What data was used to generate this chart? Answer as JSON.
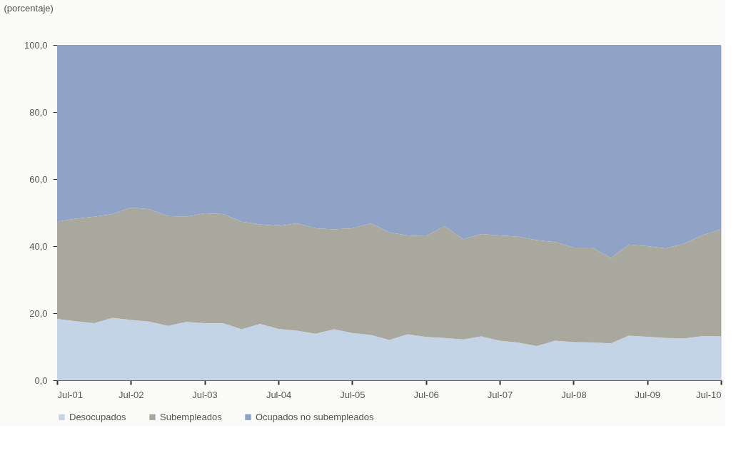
{
  "chart_data": {
    "type": "area",
    "stacked": true,
    "ylabel": "(porcentaje)",
    "x": [
      "2001-07",
      "2001-10",
      "2002-01",
      "2002-04",
      "2002-07",
      "2002-10",
      "2003-01",
      "2003-04",
      "2003-07",
      "2003-10",
      "2004-01",
      "2004-04",
      "2004-07",
      "2004-10",
      "2005-01",
      "2005-04",
      "2005-07",
      "2005-10",
      "2006-01",
      "2006-04",
      "2006-07",
      "2006-10",
      "2007-01",
      "2007-04",
      "2007-07",
      "2007-10",
      "2008-01",
      "2008-04",
      "2008-07",
      "2008-10",
      "2009-01",
      "2009-04",
      "2009-07",
      "2009-10",
      "2010-01",
      "2010-04",
      "2010-07"
    ],
    "series": [
      {
        "name": "Desocupados",
        "color": "#c5d3e6",
        "values": [
          18.3,
          17.6,
          17.0,
          18.6,
          18.0,
          17.5,
          16.2,
          17.4,
          17.0,
          17.0,
          15.2,
          16.8,
          15.3,
          14.8,
          13.9,
          15.2,
          14.1,
          13.5,
          12.0,
          13.7,
          12.9,
          12.6,
          12.2,
          13.1,
          11.8,
          11.2,
          10.2,
          11.8,
          11.4,
          11.3,
          11.0,
          13.3,
          13.0,
          12.6,
          12.5,
          13.2,
          13.1
        ]
      },
      {
        "name": "Subempleados",
        "color": "#aaa79c",
        "values": [
          29.0,
          30.6,
          31.8,
          31.0,
          33.5,
          33.5,
          32.8,
          31.4,
          32.8,
          32.6,
          32.1,
          29.7,
          30.7,
          32.0,
          31.4,
          29.8,
          31.2,
          33.3,
          32.1,
          29.5,
          30.1,
          33.4,
          29.9,
          30.5,
          31.4,
          31.6,
          31.6,
          29.4,
          28.2,
          28.3,
          25.5,
          27.2,
          27.0,
          26.7,
          28.3,
          30.1,
          31.9
        ]
      },
      {
        "name": "Ocupados no subempleados",
        "color": "#8fa3c6",
        "values": [
          52.7,
          51.8,
          51.2,
          50.4,
          48.5,
          49.0,
          51.0,
          51.2,
          50.2,
          50.4,
          52.7,
          53.5,
          54.0,
          53.2,
          54.7,
          55.0,
          54.7,
          53.2,
          55.9,
          56.8,
          57.0,
          54.0,
          57.9,
          56.4,
          56.8,
          57.2,
          58.2,
          58.8,
          60.4,
          60.4,
          63.5,
          59.5,
          60.0,
          60.7,
          59.2,
          56.7,
          55.0
        ]
      }
    ],
    "xlim": [
      "2001-07",
      "2010-07"
    ],
    "xticks": [
      {
        "value": "2001-07",
        "label": "Jul-01"
      },
      {
        "value": "2002-07",
        "label": "Jul-02"
      },
      {
        "value": "2003-07",
        "label": "Jul-03"
      },
      {
        "value": "2004-07",
        "label": "Jul-04"
      },
      {
        "value": "2005-07",
        "label": "Jul-05"
      },
      {
        "value": "2006-07",
        "label": "Jul-06"
      },
      {
        "value": "2007-07",
        "label": "Jul-07"
      },
      {
        "value": "2008-07",
        "label": "Jul-08"
      },
      {
        "value": "2009-07",
        "label": "Jul-09"
      },
      {
        "value": "2010-07",
        "label": "Jul-10"
      }
    ],
    "ylim": [
      0,
      100
    ],
    "yticks": [
      {
        "value": 0,
        "label": "0,0"
      },
      {
        "value": 20,
        "label": "20,0"
      },
      {
        "value": 40,
        "label": "40,0"
      },
      {
        "value": 60,
        "label": "60,0"
      },
      {
        "value": 80,
        "label": "80,0"
      },
      {
        "value": 100,
        "label": "100,0"
      }
    ],
    "grid": false,
    "legend": "bottom"
  }
}
